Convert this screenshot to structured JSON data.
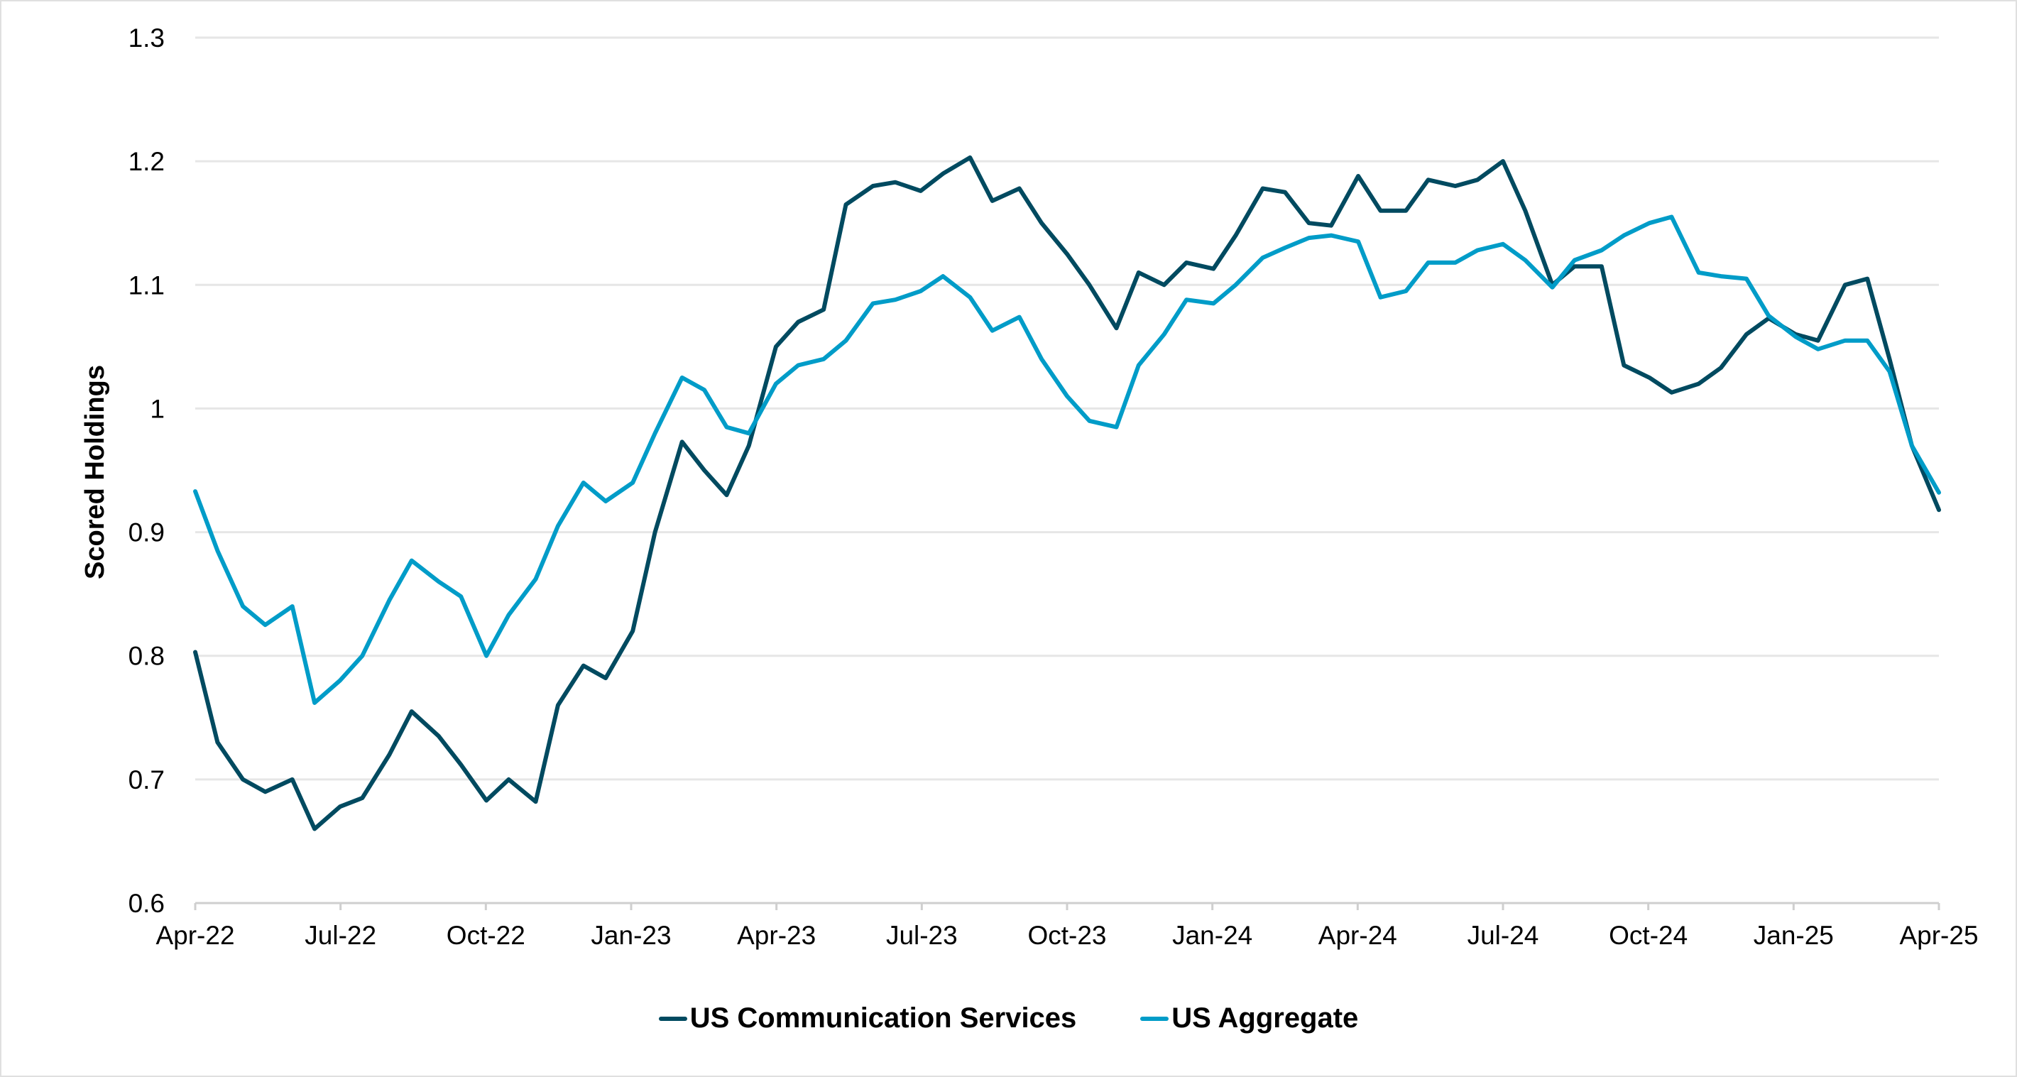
{
  "chart_data": {
    "type": "line",
    "title": "",
    "xlabel": "",
    "ylabel": "Scored Holdings",
    "ylim": [
      0.6,
      1.3
    ],
    "yticks": [
      "0.6",
      "0.7",
      "0.8",
      "0.9",
      "1",
      "1.1",
      "1.2",
      "1.3"
    ],
    "xticks": [
      "Apr-22",
      "Jul-22",
      "Oct-22",
      "Jan-23",
      "Apr-23",
      "Jul-23",
      "Oct-23",
      "Jan-24",
      "Apr-24",
      "Jul-24",
      "Oct-24",
      "Jan-25",
      "Apr-25"
    ],
    "xlim": [
      "2022-04-01",
      "2025-04-01"
    ],
    "grid": "horizontal",
    "legend": "bottom",
    "x": [
      "2022-04-01",
      "2022-04-15",
      "2022-05-01",
      "2022-05-15",
      "2022-06-01",
      "2022-06-15",
      "2022-07-01",
      "2022-07-15",
      "2022-08-01",
      "2022-08-15",
      "2022-09-01",
      "2022-09-15",
      "2022-10-01",
      "2022-10-15",
      "2022-11-01",
      "2022-11-15",
      "2022-12-01",
      "2022-12-15",
      "2023-01-01",
      "2023-01-15",
      "2023-02-01",
      "2023-02-15",
      "2023-03-01",
      "2023-03-15",
      "2023-04-01",
      "2023-04-15",
      "2023-05-01",
      "2023-05-15",
      "2023-06-01",
      "2023-06-15",
      "2023-07-01",
      "2023-07-15",
      "2023-08-01",
      "2023-08-15",
      "2023-09-01",
      "2023-09-15",
      "2023-10-01",
      "2023-10-15",
      "2023-11-01",
      "2023-11-15",
      "2023-12-01",
      "2023-12-15",
      "2024-01-01",
      "2024-01-15",
      "2024-02-01",
      "2024-02-15",
      "2024-03-01",
      "2024-03-15",
      "2024-04-01",
      "2024-04-15",
      "2024-05-01",
      "2024-05-15",
      "2024-06-01",
      "2024-06-15",
      "2024-07-01",
      "2024-07-15",
      "2024-08-01",
      "2024-08-15",
      "2024-09-01",
      "2024-09-15",
      "2024-10-01",
      "2024-10-15",
      "2024-11-01",
      "2024-11-15",
      "2024-12-01",
      "2024-12-15",
      "2025-01-01",
      "2025-01-15",
      "2025-02-01",
      "2025-02-15",
      "2025-03-01",
      "2025-03-15",
      "2025-04-01"
    ],
    "series": [
      {
        "name": "US Communication Services",
        "color": "#004a60",
        "values": [
          0.803,
          0.73,
          0.7,
          0.69,
          0.7,
          0.66,
          0.678,
          0.685,
          0.72,
          0.755,
          0.735,
          0.712,
          0.683,
          0.7,
          0.682,
          0.76,
          0.792,
          0.782,
          0.82,
          0.9,
          0.973,
          0.95,
          0.93,
          0.97,
          1.05,
          1.07,
          1.08,
          1.165,
          1.18,
          1.183,
          1.176,
          1.19,
          1.203,
          1.168,
          1.178,
          1.15,
          1.125,
          1.1,
          1.065,
          1.11,
          1.1,
          1.118,
          1.113,
          1.14,
          1.178,
          1.175,
          1.15,
          1.148,
          1.188,
          1.16,
          1.16,
          1.185,
          1.18,
          1.185,
          1.2,
          1.16,
          1.1,
          1.115,
          1.115,
          1.035,
          1.025,
          1.013,
          1.02,
          1.033,
          1.06,
          1.073,
          1.06,
          1.055,
          1.1,
          1.105,
          1.04,
          0.97,
          0.918
        ]
      },
      {
        "name": "US Aggregate",
        "color": "#009cc8",
        "values": [
          0.933,
          0.885,
          0.84,
          0.825,
          0.84,
          0.762,
          0.78,
          0.8,
          0.845,
          0.877,
          0.86,
          0.848,
          0.8,
          0.833,
          0.862,
          0.905,
          0.94,
          0.925,
          0.94,
          0.98,
          1.025,
          1.015,
          0.985,
          0.98,
          1.02,
          1.035,
          1.04,
          1.055,
          1.085,
          1.088,
          1.095,
          1.107,
          1.09,
          1.063,
          1.074,
          1.04,
          1.01,
          0.99,
          0.985,
          1.035,
          1.06,
          1.088,
          1.085,
          1.1,
          1.122,
          1.13,
          1.138,
          1.14,
          1.135,
          1.09,
          1.095,
          1.118,
          1.118,
          1.128,
          1.133,
          1.12,
          1.098,
          1.12,
          1.128,
          1.14,
          1.15,
          1.155,
          1.11,
          1.107,
          1.105,
          1.075,
          1.058,
          1.048,
          1.055,
          1.055,
          1.03,
          0.97,
          0.932
        ]
      }
    ]
  }
}
